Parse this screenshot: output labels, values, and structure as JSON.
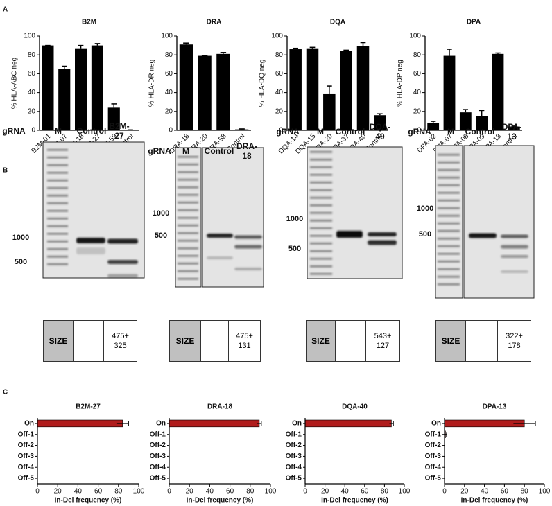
{
  "panel_labels": [
    "A",
    "B",
    "C"
  ],
  "chart_data": [
    {
      "type": "bar",
      "title": "B2M",
      "ylabel": "% HLA-ABC neg",
      "categories": [
        "B2M-01",
        "B2M-07",
        "B2M-18",
        "B2M-27",
        "B2M-59",
        "Control"
      ],
      "values": [
        90,
        65,
        87,
        90,
        24,
        0.5
      ],
      "errors": [
        0,
        3,
        3,
        2,
        4,
        0
      ],
      "color": "#000000",
      "ylim": [
        0,
        100
      ],
      "yticks": [
        0,
        20,
        40,
        60,
        80,
        100
      ]
    },
    {
      "type": "bar",
      "title": "DRA",
      "ylabel": "% HLA-DR neg",
      "categories": [
        "DRA-18",
        "DRA-20",
        "DRA-58",
        "Control"
      ],
      "values": [
        91,
        79,
        81,
        1
      ],
      "errors": [
        1.5,
        0,
        1.5,
        0.5
      ],
      "color": "#000000",
      "ylim": [
        0,
        100
      ],
      "yticks": [
        0,
        20,
        40,
        60,
        80,
        100
      ]
    },
    {
      "type": "bar",
      "title": "DQA",
      "ylabel": "% HLA-DQ neg",
      "categories": [
        "DQA-14",
        "DQA-15",
        "DQA-20",
        "DQA-37",
        "DQA-40",
        "Control"
      ],
      "values": [
        86,
        87,
        39,
        84,
        89,
        16
      ],
      "errors": [
        1,
        1,
        8,
        1,
        4,
        1.5
      ],
      "color": "#000000",
      "ylim": [
        0,
        100
      ],
      "yticks": [
        0,
        20,
        40,
        60,
        80,
        100
      ]
    },
    {
      "type": "bar",
      "title": "DPA",
      "ylabel": "% HLA-DP neg",
      "categories": [
        "DPA-02",
        "DPA-07",
        "DPA-08",
        "DPA-09",
        "DPA-13",
        "Control"
      ],
      "values": [
        8,
        79,
        19,
        15,
        81,
        4
      ],
      "errors": [
        1.5,
        7,
        3,
        6,
        1,
        0.5
      ],
      "color": "#000000",
      "ylim": [
        0,
        100
      ],
      "yticks": [
        0,
        20,
        40,
        60,
        80,
        100
      ]
    },
    {
      "type": "hbar",
      "title": "B2M-27",
      "xlabel": "In-Del frequency (%)",
      "categories": [
        "On",
        "Off-1",
        "Off-2",
        "Off-3",
        "Off-4",
        "Off-5"
      ],
      "values": [
        84,
        0,
        0,
        0,
        0,
        0
      ],
      "errors": [
        6,
        0,
        0,
        0,
        0,
        0
      ],
      "color": "#b01c1c",
      "xlim": [
        0,
        100
      ],
      "xticks": [
        0,
        20,
        40,
        60,
        80,
        100
      ]
    },
    {
      "type": "hbar",
      "title": "DRA-18",
      "xlabel": "In-Del frequency (%)",
      "categories": [
        "On",
        "Off-1",
        "Off-2",
        "Off-3",
        "Off-4",
        "Off-5"
      ],
      "values": [
        89,
        0,
        0,
        0,
        0,
        0
      ],
      "errors": [
        2,
        0,
        0,
        0,
        0,
        0
      ],
      "color": "#b01c1c",
      "xlim": [
        0,
        100
      ],
      "xticks": [
        0,
        20,
        40,
        60,
        80,
        100
      ]
    },
    {
      "type": "hbar",
      "title": "DQA-40",
      "xlabel": "In-Del frequency (%)",
      "categories": [
        "On",
        "Off-1",
        "Off-2",
        "Off-3",
        "Off-4",
        "Off-5"
      ],
      "values": [
        87,
        0,
        0,
        0,
        0,
        0
      ],
      "errors": [
        2,
        0,
        0,
        0,
        0,
        0
      ],
      "color": "#b01c1c",
      "xlim": [
        0,
        100
      ],
      "xticks": [
        0,
        20,
        40,
        60,
        80,
        100
      ]
    },
    {
      "type": "hbar",
      "title": "DPA-13",
      "xlabel": "In-Del frequency (%)",
      "categories": [
        "On",
        "Off-1",
        "Off-2",
        "Off-3",
        "Off-4",
        "Off-5"
      ],
      "values": [
        80,
        1,
        0,
        0,
        0,
        0
      ],
      "errors": [
        11,
        1,
        0,
        0,
        0,
        0
      ],
      "color": "#b01c1c",
      "xlim": [
        0,
        100
      ],
      "xticks": [
        0,
        20,
        40,
        60,
        80,
        100
      ]
    }
  ],
  "gels": [
    {
      "row_label": "gRNA",
      "lanes": [
        "M",
        "Control",
        "B2M-27"
      ],
      "size_markers": [
        1000,
        500
      ],
      "table": {
        "header": "SIZE",
        "result": "475+ 325"
      }
    },
    {
      "row_label": "gRNA",
      "lanes": [
        "M",
        "Control",
        "DRA-18"
      ],
      "size_markers": [
        1000,
        500
      ],
      "table": {
        "header": "SIZE",
        "result": "475+ 131"
      }
    },
    {
      "row_label": "gRNA",
      "lanes": [
        "M",
        "Control",
        "DQA-40"
      ],
      "size_markers": [
        1000,
        500
      ],
      "table": {
        "header": "SIZE",
        "result": "543+ 127"
      }
    },
    {
      "row_label": "gRNA",
      "lanes": [
        "M",
        "Control",
        "DPA-13"
      ],
      "size_markers": [
        1000,
        500
      ],
      "table": {
        "header": "SIZE",
        "result": "322+ 178"
      }
    }
  ]
}
